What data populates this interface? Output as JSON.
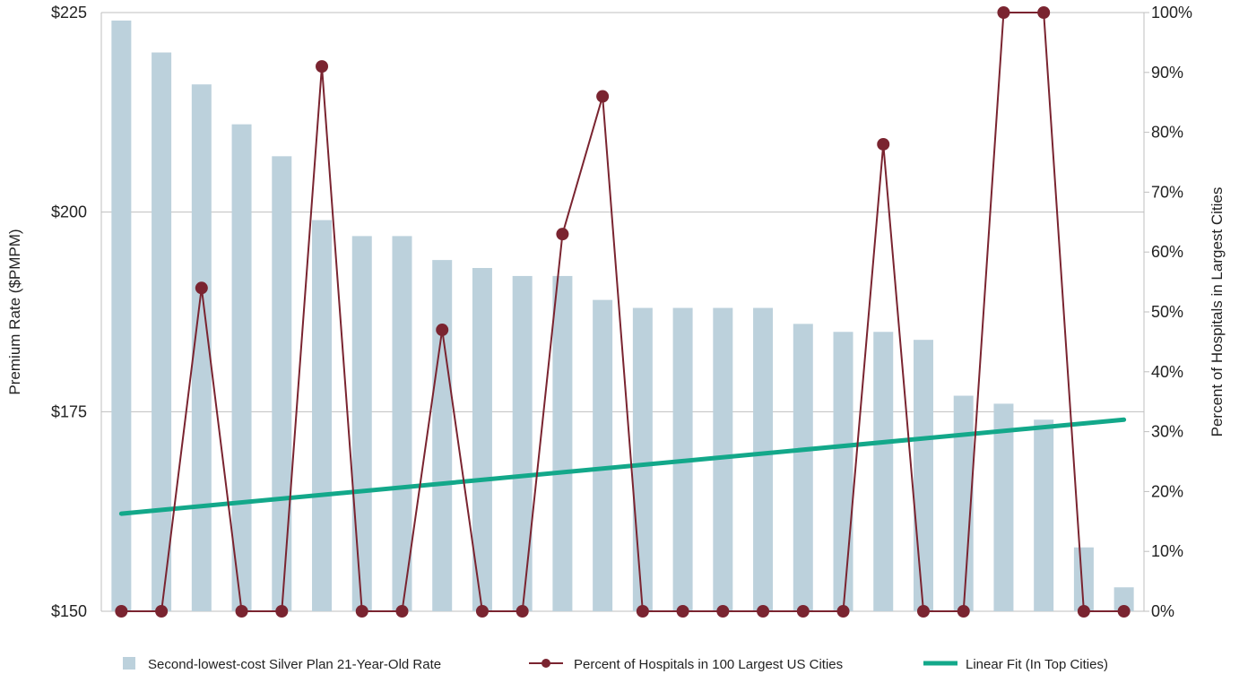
{
  "chart_data": {
    "type": "bar",
    "title": "",
    "ylabel": "Premium Rate ($PMPM)",
    "y2label": "Percent of Hospitals in Largest Cities",
    "ylim": [
      150,
      225
    ],
    "y2lim": [
      0,
      100
    ],
    "yticks": [
      "$150",
      "$175",
      "$200",
      "$225"
    ],
    "y2ticks": [
      "0%",
      "10%",
      "20%",
      "30%",
      "40%",
      "50%",
      "60%",
      "70%",
      "80%",
      "90%",
      "100%"
    ],
    "grid": true,
    "legend_position": "bottom",
    "colors": {
      "bar": "#bcd1dc",
      "line": "#7a2430",
      "fit": "#13a88a",
      "grid": "#bfbfbf"
    },
    "series": [
      {
        "name": "Second-lowest-cost Silver Plan 21-Year-Old Rate",
        "type": "bar",
        "axis": "left",
        "values": [
          224,
          220,
          216,
          211,
          207,
          199,
          197,
          197,
          194,
          193,
          192,
          192,
          189,
          188,
          188,
          188,
          188,
          186,
          185,
          185,
          184,
          177,
          176,
          174,
          158,
          153
        ]
      },
      {
        "name": "Percent of Hospitals in 100 Largest US Cities",
        "type": "line",
        "axis": "right",
        "values": [
          0,
          0,
          54,
          0,
          0,
          91,
          0,
          0,
          47,
          0,
          0,
          63,
          86,
          0,
          0,
          0,
          0,
          0,
          0,
          78,
          0,
          0,
          100,
          100,
          0,
          0
        ]
      },
      {
        "name": "Linear Fit (In Top Cities)",
        "type": "line",
        "axis": "right",
        "values": [
          16.3,
          32.0
        ]
      }
    ]
  }
}
